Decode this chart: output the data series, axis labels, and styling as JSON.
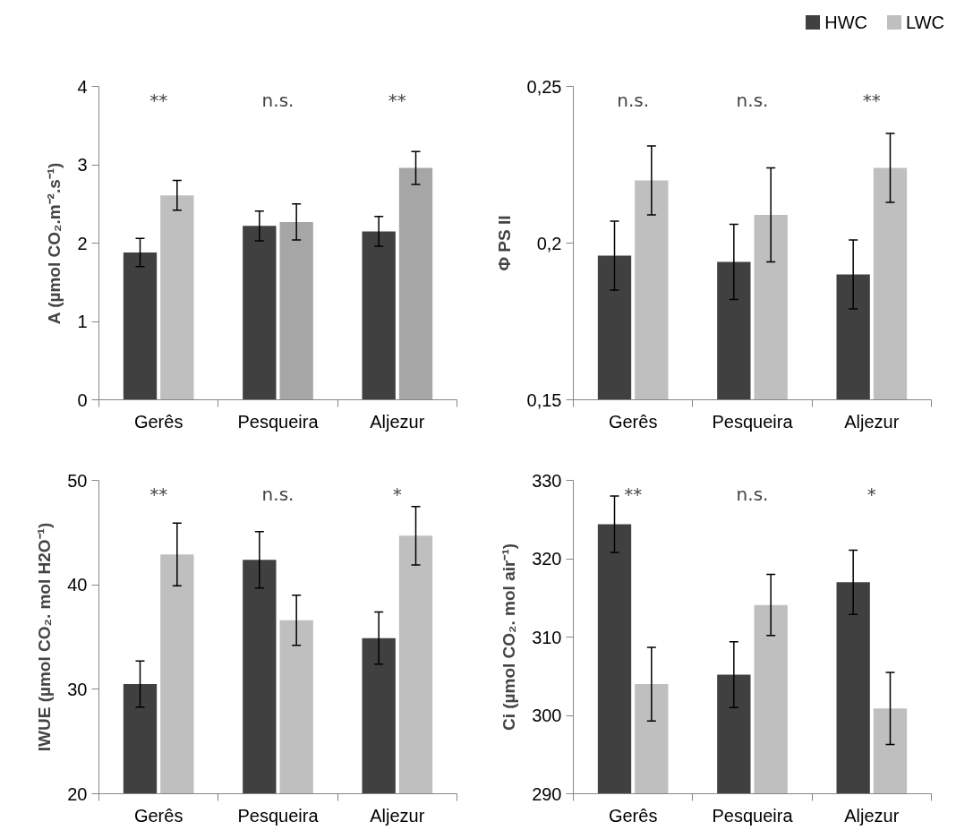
{
  "chart_data": [
    {
      "type": "bar",
      "categories": [
        "Gerês",
        "Pesqueira",
        "Aljezur"
      ],
      "ylabel": "A (µmol CO₂.m⁻².s⁻¹)",
      "ylim": [
        0,
        4
      ],
      "yticks": [
        0,
        1,
        2,
        3,
        4
      ],
      "series": [
        {
          "color": "#404040",
          "values": [
            1.88,
            2.22,
            2.15
          ],
          "errors": [
            0.18,
            0.19,
            0.19
          ]
        },
        {
          "colors": [
            "#bfbfbf",
            "#a6a6a6",
            "#a6a6a6"
          ],
          "values": [
            2.61,
            2.27,
            2.96
          ],
          "errors": [
            0.19,
            0.23,
            0.21
          ]
        }
      ],
      "annotations": [
        "**",
        "n.s.",
        "**"
      ]
    },
    {
      "type": "bar",
      "categories": [
        "Gerês",
        "Pesqueira",
        "Aljezur"
      ],
      "ylabel": "Φ PS II",
      "ylim": [
        0.15,
        0.25
      ],
      "yticks": [
        {
          "value": 0.15,
          "label": "0,15"
        },
        {
          "value": 0.2,
          "label": "0,2"
        },
        {
          "value": 0.25,
          "label": "0,25"
        }
      ],
      "legend": "top right",
      "series": [
        {
          "name": "HWC",
          "color": "#404040",
          "values": [
            0.196,
            0.194,
            0.19
          ],
          "errors": [
            0.011,
            0.012,
            0.011
          ]
        },
        {
          "name": "LWC",
          "color": "#bfbfbf",
          "values": [
            0.22,
            0.209,
            0.224
          ],
          "errors": [
            0.011,
            0.015,
            0.011
          ]
        }
      ],
      "annotations": [
        "n.s.",
        "n.s.",
        "**"
      ]
    },
    {
      "type": "bar",
      "categories": [
        "Gerês",
        "Pesqueira",
        "Aljezur"
      ],
      "ylabel": "IWUE (µmol CO₂. mol H2O⁻¹)",
      "ylim": [
        20,
        50
      ],
      "yticks": [
        20,
        30,
        40,
        50
      ],
      "series": [
        {
          "color": "#404040",
          "values": [
            30.5,
            42.4,
            34.9
          ],
          "errors": [
            2.2,
            2.7,
            2.5
          ]
        },
        {
          "color": "#bfbfbf",
          "values": [
            42.9,
            36.6,
            44.7
          ],
          "errors": [
            3.0,
            2.4,
            2.8
          ]
        }
      ],
      "annotations": [
        "**",
        "n.s.",
        "*"
      ]
    },
    {
      "type": "bar",
      "categories": [
        "Gerês",
        "Pesqueira",
        "Aljezur"
      ],
      "ylabel": "Ci (µmol CO₂. mol air⁻¹)",
      "ylim": [
        290,
        330
      ],
      "yticks": [
        290,
        300,
        310,
        320,
        330
      ],
      "series": [
        {
          "color": "#404040",
          "values": [
            324.4,
            305.2,
            317.0
          ],
          "errors": [
            3.6,
            4.2,
            4.1
          ]
        },
        {
          "color": "#bfbfbf",
          "values": [
            304.0,
            314.1,
            300.9
          ],
          "errors": [
            4.7,
            3.9,
            4.6
          ]
        }
      ],
      "annotations": [
        "**",
        "n.s.",
        "*"
      ]
    }
  ]
}
